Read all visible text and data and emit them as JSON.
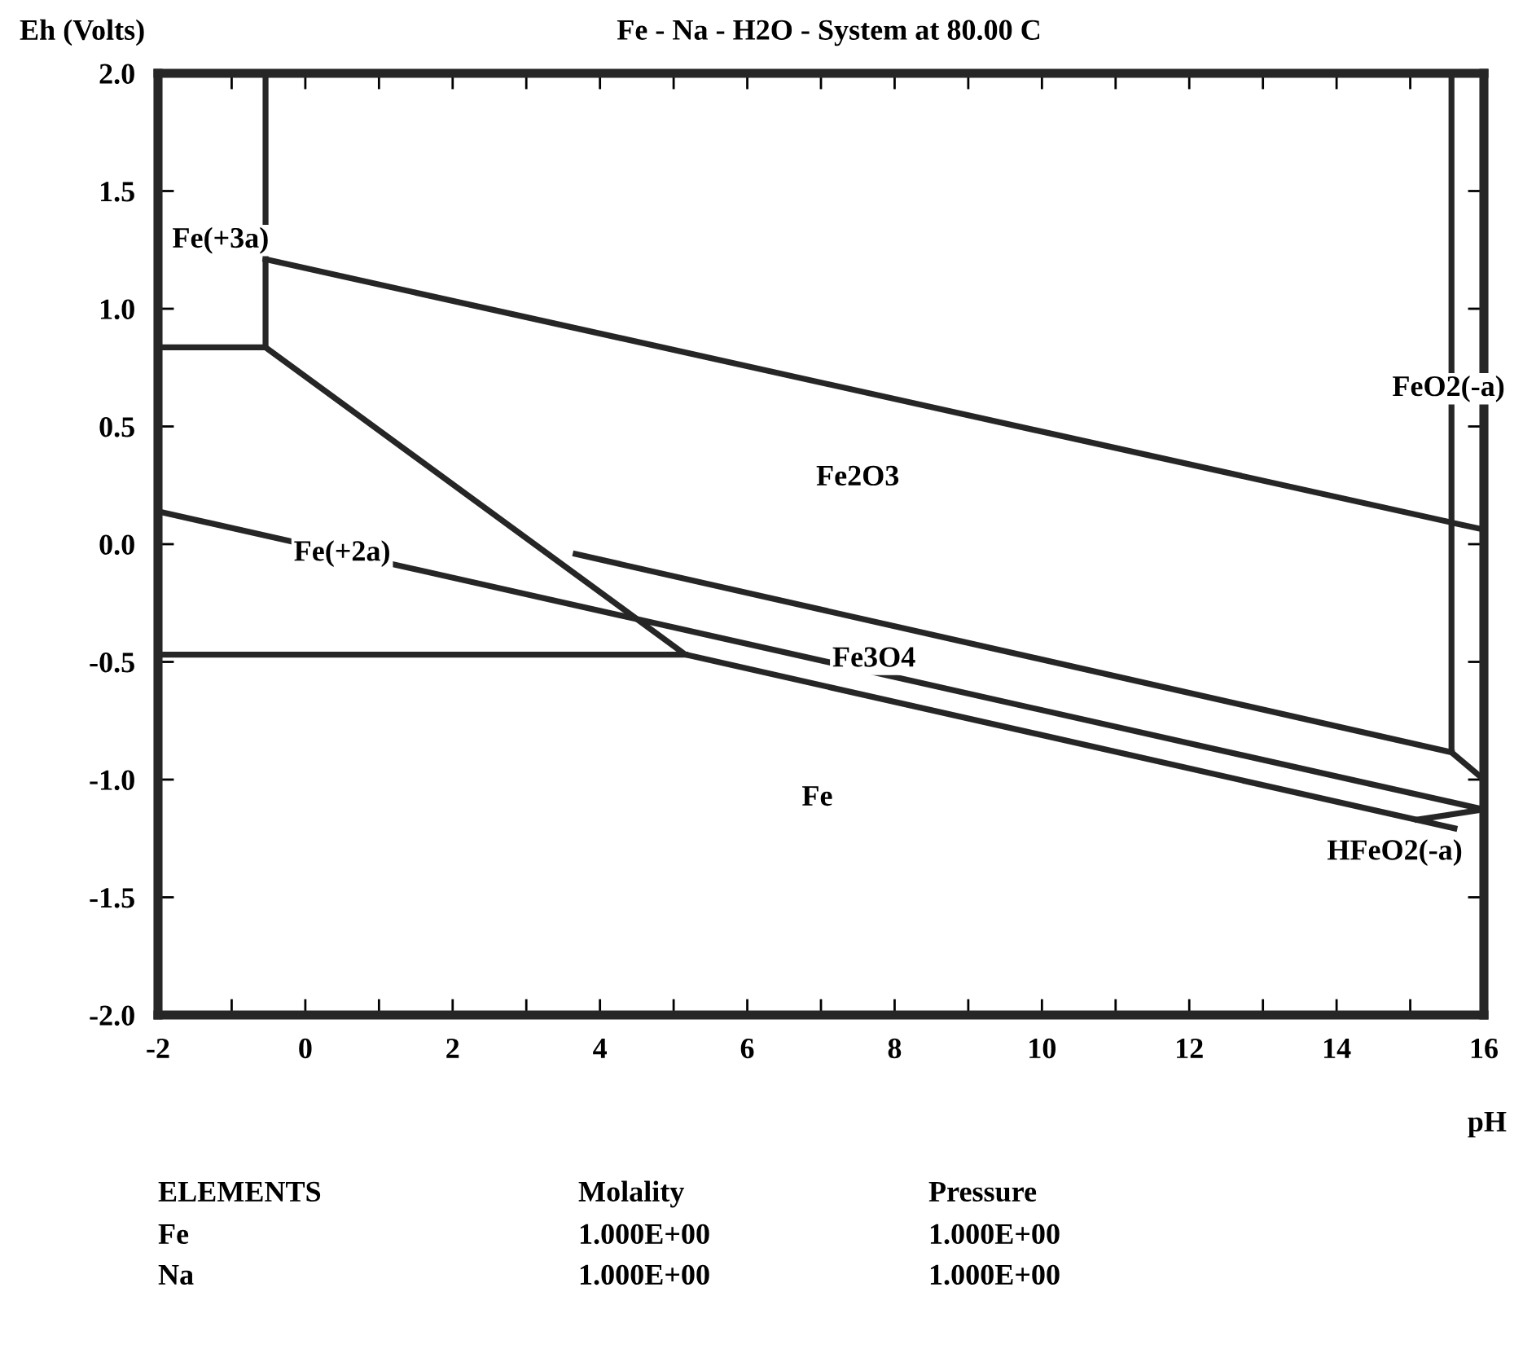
{
  "chart_data": {
    "type": "line",
    "title": "Fe - Na - H2O - System at 80.00 C",
    "xlabel": "pH",
    "ylabel": "Eh (Volts)",
    "series": [
      {
        "color": "#262626",
        "x": [
          -2,
          -0.54,
          -0.54
        ],
        "values": [
          0.836,
          0.836,
          2.0
        ]
      },
      {
        "color": "#262626",
        "x": [
          -0.54,
          15.56,
          16
        ],
        "values": [
          1.21,
          0.092,
          0.062
        ]
      },
      {
        "color": "#262626",
        "x": [
          15.56,
          15.56,
          16
        ],
        "values": [
          2.0,
          -0.884,
          -1.0
        ]
      },
      {
        "color": "#262626",
        "x": [
          -0.54,
          5.16,
          15.6
        ],
        "values": [
          0.836,
          -0.469,
          -1.207
        ]
      },
      {
        "color": "#262626",
        "x": [
          -2,
          5.16
        ],
        "values": [
          -0.469,
          -0.469
        ]
      },
      {
        "color": "#262626",
        "x": [
          -2,
          16
        ],
        "values": [
          0.139,
          -1.127
        ]
      },
      {
        "color": "#262626",
        "x": [
          3.67,
          15.56
        ],
        "values": [
          -0.042,
          -0.884
        ]
      },
      {
        "color": "#262626",
        "x": [
          15.1,
          16
        ],
        "values": [
          -1.17,
          -1.127
        ]
      }
    ],
    "xlim": [
      -2,
      16
    ],
    "ylim": [
      -2.0,
      2.0
    ],
    "xticks": [
      -2,
      {
        "value": -1,
        "label": null
      },
      0,
      {
        "value": 1,
        "label": null
      },
      2,
      {
        "value": 3,
        "label": null
      },
      4,
      {
        "value": 5,
        "label": null
      },
      6,
      {
        "value": 7,
        "label": null
      },
      8,
      {
        "value": 9,
        "label": null
      },
      10,
      {
        "value": 11,
        "label": null
      },
      12,
      {
        "value": 13,
        "label": null
      },
      14,
      {
        "value": 15,
        "label": null
      },
      16
    ],
    "yticks": [
      {
        "value": -2,
        "label": "-2.0"
      },
      -1.5,
      {
        "value": -1,
        "label": "-1.0"
      },
      -0.5,
      {
        "value": 0,
        "label": "0.0"
      },
      0.5,
      {
        "value": 1,
        "label": "1.0"
      },
      1.5,
      {
        "value": 2,
        "label": "2.0"
      }
    ],
    "grid": false,
    "legend": false,
    "marker": "none",
    "line_style": "solid",
    "annotations": [
      "Fe(+3a)",
      "Fe(+2a)",
      "Fe2O3",
      "Fe3O4",
      "FeO2(-a)",
      "Fe",
      "HFeO2(-a)",
      "ELEMENTS",
      "Molality",
      "Pressure",
      "Fe",
      "1.000E+00",
      "1.000E+00",
      "Na",
      "1.000E+00",
      "1.000E+00"
    ]
  }
}
